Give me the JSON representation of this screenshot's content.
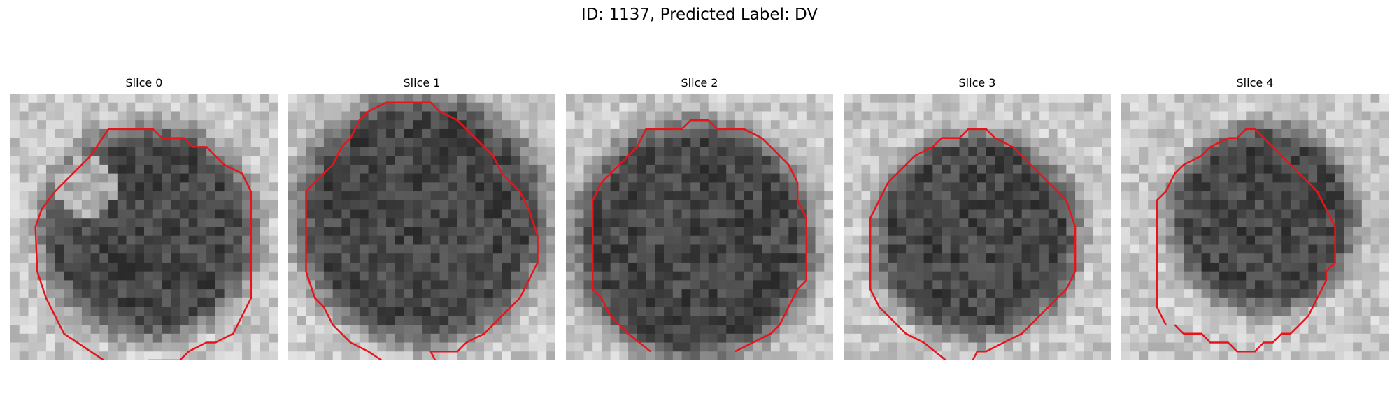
{
  "figure": {
    "title": "ID: 1137, Predicted Label: DV"
  },
  "panels": [
    {
      "title": "Slice 0"
    },
    {
      "title": "Slice 1"
    },
    {
      "title": "Slice 2"
    },
    {
      "title": "Slice 3"
    },
    {
      "title": "Slice 4"
    }
  ],
  "colors": {
    "contour": "#e8141c",
    "background": "#ffffff"
  }
}
